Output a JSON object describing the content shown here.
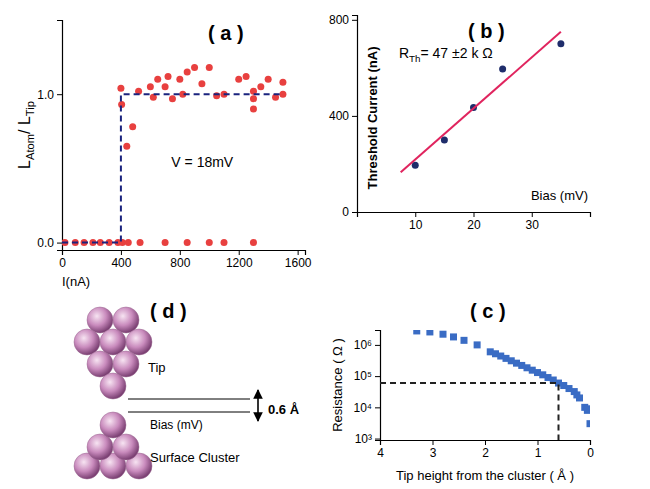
{
  "chart_data": [
    {
      "type": "scatter",
      "title": "( a )",
      "xlabel": "I(nA)",
      "ylabel": [
        {
          "text": "L"
        },
        {
          "text": "Atom",
          "sub": true
        },
        {
          "text": "/ L"
        },
        {
          "text": "Tip",
          "sub": true
        }
      ],
      "xlim": [
        0,
        1650
      ],
      "ylim": [
        -0.05,
        1.5
      ],
      "xticks": [
        0,
        400,
        800,
        1200,
        1600
      ],
      "yticks": [
        {
          "value": 0,
          "label": "0.0"
        },
        {
          "value": 1,
          "label": "1.0"
        }
      ],
      "annotations": [
        "V = 18mV"
      ],
      "series": [
        {
          "type": "scatter",
          "color": "#e8403f",
          "marker": "circle",
          "x": [
            20,
            90,
            150,
            210,
            260,
            320,
            380,
            410,
            450,
            530,
            700,
            850,
            1000,
            1100,
            1300,
            400,
            405,
            440,
            480,
            520,
            600,
            620,
            650,
            700,
            720,
            750,
            800,
            820,
            850,
            900,
            950,
            1000,
            1050,
            1100,
            1200,
            1250,
            1300,
            1300,
            1300,
            1350,
            1400,
            1450,
            1500,
            1500
          ],
          "values": [
            0,
            0,
            0,
            0,
            0,
            0,
            0,
            0,
            0,
            0,
            0,
            0,
            0,
            0,
            0,
            1.04,
            0.93,
            0.65,
            0.78,
            1.02,
            1.05,
            0.98,
            1.1,
            1.05,
            1.12,
            0.97,
            1.1,
            1.0,
            1.15,
            1.18,
            1.07,
            1.18,
            0.99,
            1.0,
            1.1,
            1.12,
            0.97,
            0.9,
            1.02,
            1.05,
            1.1,
            0.98,
            1.08,
            1.0
          ]
        },
        {
          "type": "line",
          "color": "#1a237e",
          "line_style": "dashed",
          "x": [
            0,
            400,
            400,
            1500
          ],
          "values": [
            0,
            0,
            1,
            1
          ]
        }
      ]
    },
    {
      "type": "scatter",
      "title": "( b )",
      "xlabel": "Bias (mV)",
      "ylabel": "Threshold Current (nA)",
      "xlim": [
        0,
        40
      ],
      "ylim": [
        0,
        820
      ],
      "xticks": [
        10,
        20,
        30
      ],
      "yticks": [
        0,
        400,
        800
      ],
      "annotations": [
        [
          {
            "text": "R"
          },
          {
            "text": "Th",
            "sub": true
          },
          {
            "text": "= 47  ±2 k Ω"
          }
        ]
      ],
      "series": [
        {
          "type": "scatter",
          "color": "#1f2d6b",
          "marker": "circle",
          "x": [
            10,
            15,
            20,
            25,
            35
          ],
          "values": [
            195,
            300,
            435,
            595,
            700
          ]
        },
        {
          "type": "line",
          "color": "#e0245e",
          "line_style": "solid",
          "x": [
            7.5,
            35
          ],
          "values": [
            165,
            750
          ]
        }
      ]
    },
    {
      "type": "scatter",
      "title": "( c )",
      "xlabel": "Tip height from the cluster ( Å )",
      "ylabel": "Resistance ( Ω )",
      "log": "y",
      "xlim": [
        4,
        0
      ],
      "ylim": [
        900,
        3000000
      ],
      "xticks": [
        4,
        3,
        2,
        1,
        0
      ],
      "yticks": [
        {
          "value": 1000,
          "label": "10³"
        },
        {
          "value": 10000,
          "label": "10⁴"
        },
        {
          "value": 100000,
          "label": "10⁵"
        },
        {
          "value": 1000000,
          "label": "10⁶"
        }
      ],
      "series": [
        {
          "type": "scatter",
          "color": "#3a6cc4",
          "marker": "square",
          "x": [
            3.3,
            3.05,
            2.8,
            2.6,
            2.4,
            2.15,
            1.9,
            1.8,
            1.7,
            1.6,
            1.5,
            1.4,
            1.3,
            1.2,
            1.1,
            1.0,
            0.9,
            0.8,
            0.7,
            0.6,
            0.5,
            0.4,
            0.3,
            0.25,
            0.2,
            0.1,
            0.05,
            0.03,
            0.0
          ],
          "values": [
            2800000,
            2600000,
            2200000,
            1800000,
            1400000,
            1000000,
            600000,
            520000,
            440000,
            370000,
            310000,
            260000,
            220000,
            185000,
            155000,
            130000,
            110000,
            90000,
            75000,
            60000,
            50000,
            40000,
            32000,
            25000,
            20000,
            10000,
            8000,
            9000,
            3000
          ]
        },
        {
          "type": "line",
          "color": "#222222",
          "line_style": "dashed",
          "x": [
            4,
            0.6,
            0.6
          ],
          "values": [
            60000,
            60000,
            900
          ]
        }
      ]
    }
  ],
  "diagram": {
    "title": "( d )",
    "tip": "Tip",
    "gap": "0.6 Å",
    "bias": "Bias (mV)",
    "cluster": "Surface Cluster"
  }
}
